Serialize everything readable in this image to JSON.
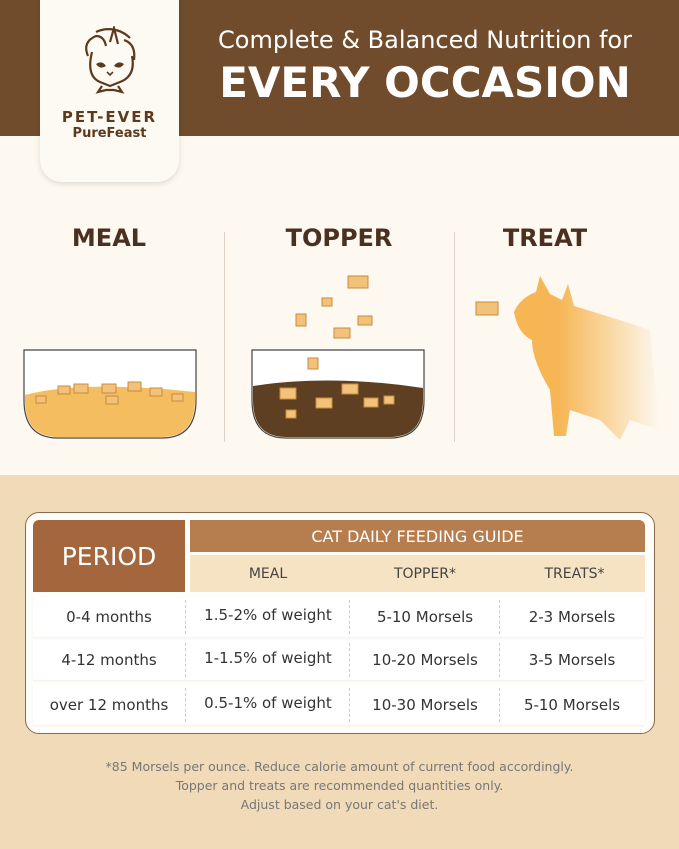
{
  "brand": {
    "name": "PET-EVER",
    "sub": "PureFeast"
  },
  "headline": {
    "line1": "Complete & Balanced Nutrition for",
    "line2": "EVERY OCCASION"
  },
  "sections": [
    "MEAL",
    "TOPPER",
    "TREAT"
  ],
  "table": {
    "period_header": "PERIOD",
    "guide_header": "CAT DAILY FEEDING GUIDE",
    "columns": [
      "MEAL",
      "TOPPER*",
      "TREATS*"
    ],
    "rows": [
      {
        "period": "0-4 months",
        "meal": "1.5-2% of weight",
        "topper": "5-10 Morsels",
        "treats": "2-3 Morsels"
      },
      {
        "period": "4-12 months",
        "meal": "1-1.5% of weight",
        "topper": "10-20 Morsels",
        "treats": "3-5 Morsels"
      },
      {
        "period": "over 12 months",
        "meal": "0.5-1% of weight",
        "topper": "10-30 Morsels",
        "treats": "5-10 Morsels"
      }
    ]
  },
  "footnote": [
    "*85 Morsels per ounce. Reduce calorie amount of current food accordingly.",
    "Topper and treats are recommended quantities only.",
    "Adjust based on your cat's diet."
  ],
  "colors": {
    "header": "#704c2c",
    "period": "#a4663c",
    "guide": "#b67d4e",
    "subhead": "#f6e3c4",
    "background": "#f0dab7"
  }
}
